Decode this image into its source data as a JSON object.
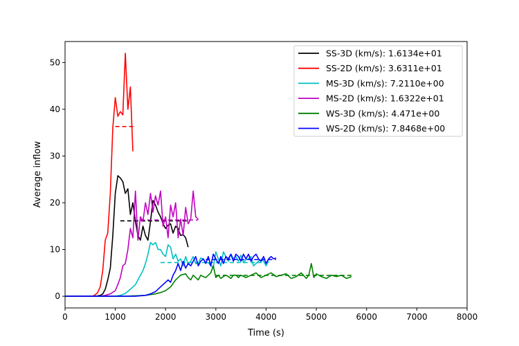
{
  "chart_data": {
    "type": "line",
    "xlabel": "Time (s)",
    "ylabel": "Average inflow",
    "xlim": [
      0,
      8000
    ],
    "ylim": [
      -2.5,
      54.5
    ],
    "xticks": [
      0,
      1000,
      2000,
      3000,
      4000,
      5000,
      6000,
      7000,
      8000
    ],
    "yticks": [
      0,
      10,
      20,
      30,
      40,
      50
    ],
    "grid": false,
    "legend_position": "top-right",
    "series": [
      {
        "name": "SS-3D (km/s): 1.6134e+01",
        "color": "#000000",
        "x": [
          0,
          600,
          700,
          750,
          800,
          850,
          900,
          950,
          1000,
          1050,
          1100,
          1150,
          1200,
          1250,
          1300,
          1350,
          1400,
          1450,
          1500,
          1550,
          1600,
          1650,
          1700,
          1750,
          1800,
          1850,
          1900,
          1950,
          2000,
          2050,
          2100,
          2150,
          2200,
          2250,
          2300,
          2350,
          2400,
          2450
        ],
        "y": [
          0,
          0,
          0.2,
          0.5,
          1.5,
          3.5,
          6,
          13,
          22,
          25.8,
          25.3,
          24.5,
          22,
          23,
          17.5,
          20,
          16,
          13,
          12,
          15,
          13,
          12,
          16,
          20.5,
          19.5,
          18,
          17,
          15.5,
          14.5,
          15.2,
          15.5,
          13.5,
          15,
          14.5,
          13,
          13.2,
          12.5,
          10.5
        ],
        "mean": 16.134,
        "mean_x": [
          1100,
          2450
        ]
      },
      {
        "name": "SS-2D (km/s): 3.6311e+01",
        "color": "#ff0000",
        "x": [
          0,
          550,
          600,
          650,
          700,
          750,
          800,
          850,
          900,
          950,
          1000,
          1050,
          1100,
          1150,
          1200,
          1250,
          1300,
          1350
        ],
        "y": [
          0,
          0,
          0.3,
          0.8,
          2,
          5.5,
          12,
          13.5,
          22,
          36,
          42.5,
          38.5,
          39.5,
          38.8,
          52,
          40,
          44.8,
          31
        ],
        "mean": 36.311,
        "mean_x": [
          1000,
          1400
        ]
      },
      {
        "name": "MS-3D (km/s): 7.2110e+00",
        "color": "#00bfbf",
        "x": [
          0,
          1000,
          1100,
          1200,
          1300,
          1400,
          1450,
          1500,
          1550,
          1600,
          1650,
          1700,
          1750,
          1800,
          1850,
          1900,
          1950,
          2000,
          2050,
          2100,
          2150,
          2200,
          2250,
          2300,
          2350,
          2400,
          2450,
          2500,
          2550,
          2600,
          2650,
          2700,
          2750,
          2800,
          2850,
          2900,
          2950,
          3000,
          3050,
          3100,
          3150,
          3200,
          3250,
          3300,
          3350,
          3400,
          3450,
          3500,
          3550,
          3600,
          3650,
          3700,
          3750,
          3800,
          3850,
          3900,
          3950,
          4000,
          4050
        ],
        "y": [
          0,
          0,
          0.2,
          0.6,
          1.5,
          2.5,
          3.5,
          4.5,
          5.5,
          7,
          9,
          11.5,
          11,
          11.5,
          10,
          10,
          9,
          8.5,
          11,
          10.5,
          8,
          9,
          7.5,
          8,
          6.5,
          8.5,
          6.8,
          7.5,
          8.5,
          7,
          7,
          8.2,
          8,
          7.2,
          7.2,
          6.5,
          6.2,
          9.5,
          8,
          6.5,
          9.5,
          8.5,
          7.5,
          9,
          8,
          8.5,
          7.5,
          8.8,
          7.2,
          7.8,
          8,
          8.5,
          6.5,
          7,
          7.5,
          7.8,
          7.5,
          6.5,
          7.5
        ],
        "mean": 7.211,
        "mean_x": [
          1900,
          4000
        ]
      },
      {
        "name": "MS-2D (km/s): 1.6322e+01",
        "color": "#bf00bf",
        "x": [
          0,
          700,
          800,
          900,
          1000,
          1050,
          1100,
          1150,
          1200,
          1250,
          1300,
          1350,
          1400,
          1450,
          1500,
          1550,
          1600,
          1650,
          1700,
          1750,
          1800,
          1850,
          1900,
          1950,
          2000,
          2050,
          2100,
          2150,
          2200,
          2250,
          2300,
          2350,
          2400,
          2450,
          2500,
          2550,
          2600,
          2650
        ],
        "y": [
          0,
          0,
          0.2,
          0.5,
          1.2,
          2.5,
          4,
          6.5,
          7,
          10,
          14.5,
          12.5,
          22.5,
          12,
          17,
          16,
          20,
          17.5,
          22,
          18,
          21.5,
          19.5,
          22.5,
          15,
          17,
          12.5,
          19.5,
          17,
          20,
          12.5,
          16.5,
          13,
          19,
          15.5,
          16.5,
          22.5,
          17,
          16.5
        ],
        "mean": 16.322,
        "mean_x": [
          1500,
          2650
        ]
      },
      {
        "name": "WS-3D (km/s): 4.471e+00",
        "color": "#007f00",
        "x": [
          0,
          1200,
          1400,
          1600,
          1800,
          1900,
          2000,
          2100,
          2200,
          2300,
          2400,
          2450,
          2500,
          2550,
          2600,
          2650,
          2700,
          2750,
          2800,
          2850,
          2900,
          2950,
          3000,
          3050,
          3100,
          3150,
          3200,
          3250,
          3300,
          3350,
          3400,
          3450,
          3500,
          3600,
          3700,
          3800,
          3900,
          4000,
          4100,
          4200,
          4300,
          4400,
          4500,
          4600,
          4700,
          4800,
          4850,
          4900,
          4950,
          5000,
          5100,
          5200,
          5300,
          5400,
          5500,
          5600,
          5700
        ],
        "y": [
          0,
          0,
          0.1,
          0.2,
          0.5,
          0.8,
          1.2,
          2,
          3.5,
          4.5,
          4.8,
          4,
          3.5,
          4.5,
          4,
          3.5,
          4.5,
          4.2,
          4,
          4.5,
          5,
          6.5,
          4,
          4.5,
          3.8,
          4.2,
          4.5,
          4.2,
          3.8,
          4.5,
          4.5,
          4,
          4.5,
          4,
          4.5,
          5,
          4,
          4.5,
          5,
          4.2,
          4.5,
          4.8,
          3.8,
          4.2,
          5,
          3.8,
          4.5,
          7,
          4,
          4.8,
          4.2,
          3.8,
          4.5,
          4.2,
          4.5,
          3.8,
          4.2
        ],
        "mean": 4.471,
        "mean_x": [
          3000,
          5700
        ]
      },
      {
        "name": "WS-2D (km/s): 7.8468e+00",
        "color": "#0000ff",
        "x": [
          0,
          1400,
          1500,
          1600,
          1700,
          1800,
          1900,
          1950,
          2000,
          2050,
          2100,
          2150,
          2200,
          2250,
          2300,
          2350,
          2400,
          2450,
          2500,
          2550,
          2600,
          2650,
          2700,
          2750,
          2800,
          2850,
          2900,
          2950,
          3000,
          3050,
          3100,
          3150,
          3200,
          3250,
          3300,
          3350,
          3400,
          3450,
          3500,
          3550,
          3600,
          3650,
          3700,
          3750,
          3800,
          3850,
          3900,
          3950,
          4000,
          4050,
          4100,
          4150,
          4200
        ],
        "y": [
          0,
          0,
          0.1,
          0.2,
          0.5,
          1,
          2,
          2.5,
          3,
          3.5,
          3,
          4.5,
          5.5,
          7,
          5.5,
          7.5,
          6,
          7,
          6.5,
          7.5,
          8.5,
          6.5,
          7.5,
          8,
          7,
          8.5,
          6.5,
          9,
          8,
          7,
          8.5,
          7,
          8.5,
          8,
          9,
          7.5,
          9,
          8.5,
          7.5,
          9,
          8,
          9,
          7.5,
          8.5,
          9,
          8,
          7.5,
          8.5,
          7,
          8,
          8.5,
          8,
          8.2
        ],
        "mean": 7.8468,
        "mean_x": [
          2800,
          4200
        ]
      }
    ]
  }
}
